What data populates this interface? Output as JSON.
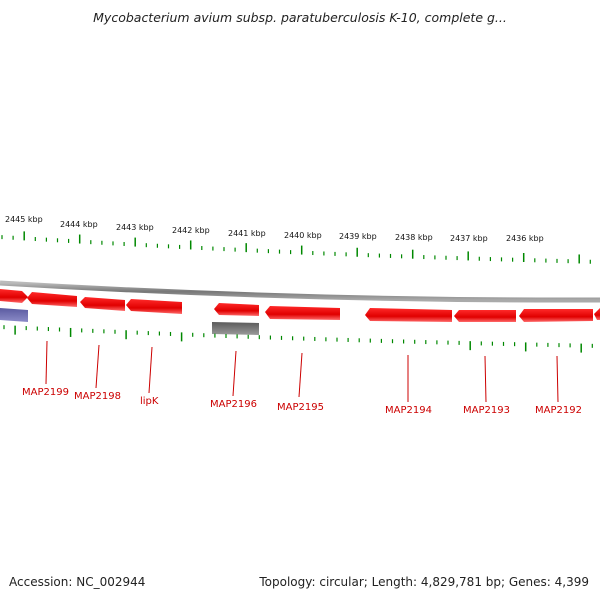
{
  "title": "Mycobacterium avium subsp. paratuberculosis K-10, complete g...",
  "footer": {
    "accession": "Accession: NC_002944",
    "summary": "Topology: circular; Length: 4,829,781 bp; Genes: 4,399"
  },
  "colors": {
    "gene_forward": "#ee0000",
    "gene_reverse": "#ee0000",
    "other_feature": "#444488",
    "grey_feature": "#666666",
    "tick": "#008800",
    "label": "#cc0000"
  },
  "scale_labels": [
    "2445 kbp",
    "2444 kbp",
    "2443 kbp",
    "2442 kbp",
    "2441 kbp",
    "2440 kbp",
    "2439 kbp",
    "2438 kbp",
    "2437 kbp",
    "2436 kbp"
  ],
  "genes": [
    {
      "name": "MAP2199"
    },
    {
      "name": "MAP2198"
    },
    {
      "name": "lipK"
    },
    {
      "name": "MAP2196"
    },
    {
      "name": "MAP2195"
    },
    {
      "name": "MAP2194"
    },
    {
      "name": "MAP2193"
    },
    {
      "name": "MAP2192"
    }
  ]
}
